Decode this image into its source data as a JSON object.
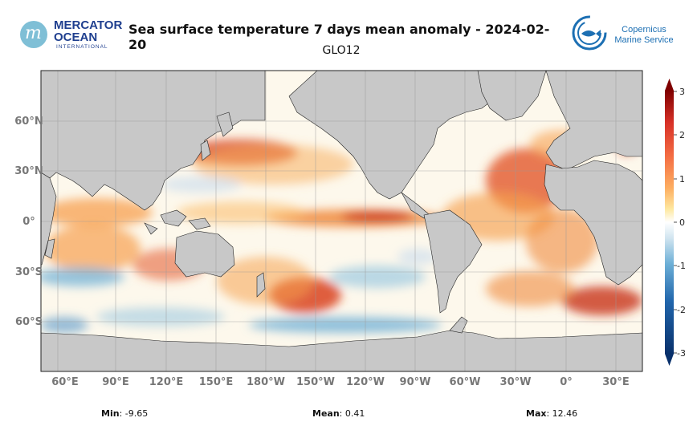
{
  "header": {
    "title": "Sea surface temperature 7 days mean anomaly - 2024-02-20",
    "subtitle": "GLO12",
    "left_logo": {
      "line1": "MERCATOR",
      "line2": "OCEAN",
      "line3": "INTERNATIONAL",
      "mark": "m"
    },
    "right_logo": {
      "line1": "Copernicus",
      "line2": "Marine Service"
    }
  },
  "chart_data": {
    "type": "heatmap",
    "title": "Sea surface temperature 7 days mean anomaly - 2024-02-20",
    "subtitle": "GLO12",
    "projection": "equirectangular",
    "x_ticks": [
      "60°E",
      "90°E",
      "120°E",
      "150°E",
      "180°W",
      "150°W",
      "120°W",
      "90°W",
      "60°W",
      "30°W",
      "0°",
      "30°E"
    ],
    "y_ticks": [
      "60°N",
      "30°N",
      "0°",
      "30°S",
      "60°S"
    ],
    "lon_range": [
      45,
      405
    ],
    "lat_range": [
      -88,
      88
    ],
    "colorbar": {
      "range": [
        -3,
        3
      ],
      "ticks": [
        "3",
        "2",
        "1",
        "0",
        "-1",
        "-2",
        "-3"
      ],
      "colors": [
        "#08306b",
        "#2166ac",
        "#6baed6",
        "#d1e5f0",
        "#ffffff",
        "#fee8a0",
        "#fdae61",
        "#f46d43",
        "#d73027",
        "#7f0000"
      ]
    },
    "stats": {
      "min_label": "Min",
      "min_value": ": -9.65",
      "mean_label": "Mean",
      "mean_value": ": 0.41",
      "max_label": "Max",
      "max_value": ": 12.46"
    }
  },
  "colors": {
    "land": "#c8c8c8",
    "ocean_neutral": "#fdf8ec",
    "grid": "#9a9a9a",
    "tick_text": "#777777"
  }
}
